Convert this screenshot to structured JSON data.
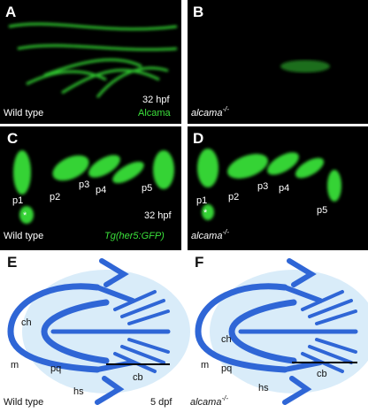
{
  "panels": [
    {
      "letter": "A",
      "stage": "32 hpf",
      "stain": "Alcama",
      "genotype": "Wild type"
    },
    {
      "letter": "B",
      "genotype": {
        "gene": "alcama",
        "superscript": "-/-"
      }
    },
    {
      "letter": "C",
      "labels": [
        "p1",
        "p2",
        "p3",
        "p4",
        "p5"
      ],
      "marker": "*",
      "stage": "32 hpf",
      "transgene": "Tg(her5:GFP)",
      "genotype": "Wild type"
    },
    {
      "letter": "D",
      "labels": [
        "p1",
        "p2",
        "p3",
        "p4",
        "p5"
      ],
      "marker": "*",
      "genotype": {
        "gene": "alcama",
        "superscript": "-/-"
      }
    },
    {
      "letter": "E",
      "labels": [
        "ch",
        "m",
        "pq",
        "hs",
        "cb"
      ],
      "stage": "5 dpf",
      "genotype": "Wild type"
    },
    {
      "letter": "F",
      "labels": [
        "ch",
        "m",
        "pq",
        "hs",
        "cb"
      ],
      "genotype": {
        "gene": "alcama",
        "superscript": "-/-"
      }
    }
  ]
}
